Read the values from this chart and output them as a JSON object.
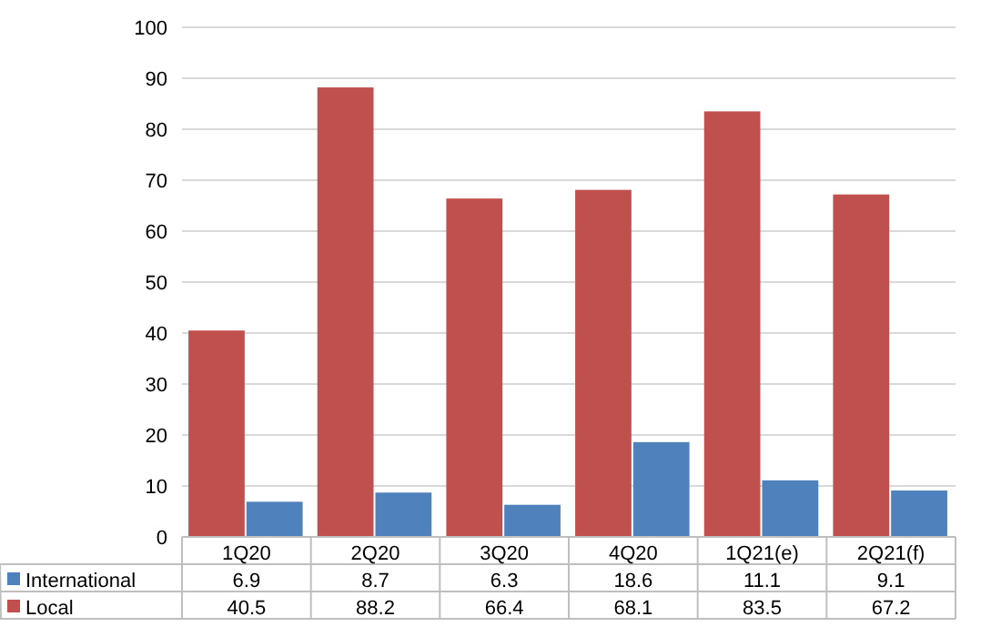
{
  "chart_data": {
    "type": "bar",
    "categories": [
      "1Q20",
      "2Q20",
      "3Q20",
      "4Q20",
      "1Q21(e)",
      "2Q21(f)"
    ],
    "series": [
      {
        "name": "International",
        "color": "#4f81bd",
        "values": [
          6.9,
          8.7,
          6.3,
          18.6,
          11.1,
          9.1
        ]
      },
      {
        "name": "Local",
        "color": "#c0504d",
        "values": [
          40.5,
          88.2,
          66.4,
          68.1,
          83.5,
          67.2
        ]
      }
    ],
    "ylim": [
      0,
      100
    ],
    "yticks": [
      0,
      10,
      20,
      30,
      40,
      50,
      60,
      70,
      80,
      90,
      100
    ],
    "grid": "y",
    "data_labels": true,
    "legend": "bottom"
  }
}
